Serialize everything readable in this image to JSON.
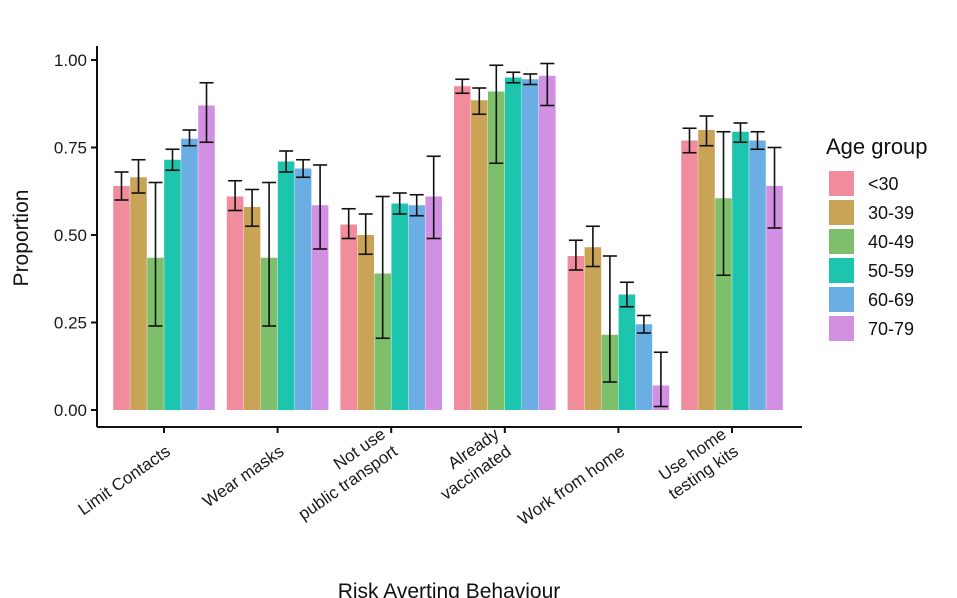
{
  "chart_data": {
    "type": "bar",
    "title": "",
    "xlabel": "Risk Averting Behaviour",
    "ylabel": "Proportion",
    "ylim": [
      0,
      1.0
    ],
    "yticks": [
      "0.00",
      "0.25",
      "0.50",
      "0.75",
      "1.00"
    ],
    "ytick_values": [
      0,
      0.25,
      0.5,
      0.75,
      1.0
    ],
    "categories": [
      [
        "Limit Contacts"
      ],
      [
        "Wear masks"
      ],
      [
        "Not use",
        "public transport"
      ],
      [
        "Already",
        "vaccinated"
      ],
      [
        "Work from home"
      ],
      [
        "Use home",
        "testing kits"
      ]
    ],
    "legend": {
      "title": "Age group",
      "position": "right"
    },
    "series": [
      {
        "name": "<30",
        "color": "#F08C9C",
        "values": [
          0.64,
          0.61,
          0.53,
          0.925,
          0.44,
          0.77
        ],
        "err_low": [
          0.6,
          0.57,
          0.49,
          0.905,
          0.4,
          0.735
        ],
        "err_high": [
          0.68,
          0.655,
          0.575,
          0.945,
          0.485,
          0.805
        ]
      },
      {
        "name": "30-39",
        "color": "#C9A457",
        "values": [
          0.665,
          0.58,
          0.5,
          0.885,
          0.465,
          0.8
        ],
        "err_low": [
          0.62,
          0.525,
          0.445,
          0.845,
          0.41,
          0.755
        ],
        "err_high": [
          0.715,
          0.63,
          0.56,
          0.92,
          0.525,
          0.84
        ]
      },
      {
        "name": "40-49",
        "color": "#7DBF6A",
        "values": [
          0.435,
          0.435,
          0.39,
          0.91,
          0.215,
          0.605
        ],
        "err_low": [
          0.24,
          0.24,
          0.205,
          0.705,
          0.08,
          0.385
        ],
        "err_high": [
          0.65,
          0.65,
          0.61,
          0.985,
          0.44,
          0.795
        ]
      },
      {
        "name": "50-59",
        "color": "#1DC5AE",
        "values": [
          0.715,
          0.71,
          0.59,
          0.95,
          0.33,
          0.795
        ],
        "err_low": [
          0.685,
          0.68,
          0.56,
          0.935,
          0.295,
          0.765
        ],
        "err_high": [
          0.745,
          0.74,
          0.62,
          0.965,
          0.365,
          0.82
        ]
      },
      {
        "name": "60-69",
        "color": "#6BAEE3",
        "values": [
          0.775,
          0.69,
          0.585,
          0.945,
          0.245,
          0.77
        ],
        "err_low": [
          0.755,
          0.665,
          0.555,
          0.93,
          0.22,
          0.745
        ],
        "err_high": [
          0.8,
          0.715,
          0.615,
          0.96,
          0.27,
          0.795
        ]
      },
      {
        "name": "70-79",
        "color": "#D290E3",
        "values": [
          0.87,
          0.585,
          0.61,
          0.955,
          0.07,
          0.64
        ],
        "err_low": [
          0.765,
          0.46,
          0.49,
          0.87,
          0.01,
          0.52
        ],
        "err_high": [
          0.935,
          0.7,
          0.725,
          0.99,
          0.165,
          0.75
        ]
      }
    ]
  }
}
